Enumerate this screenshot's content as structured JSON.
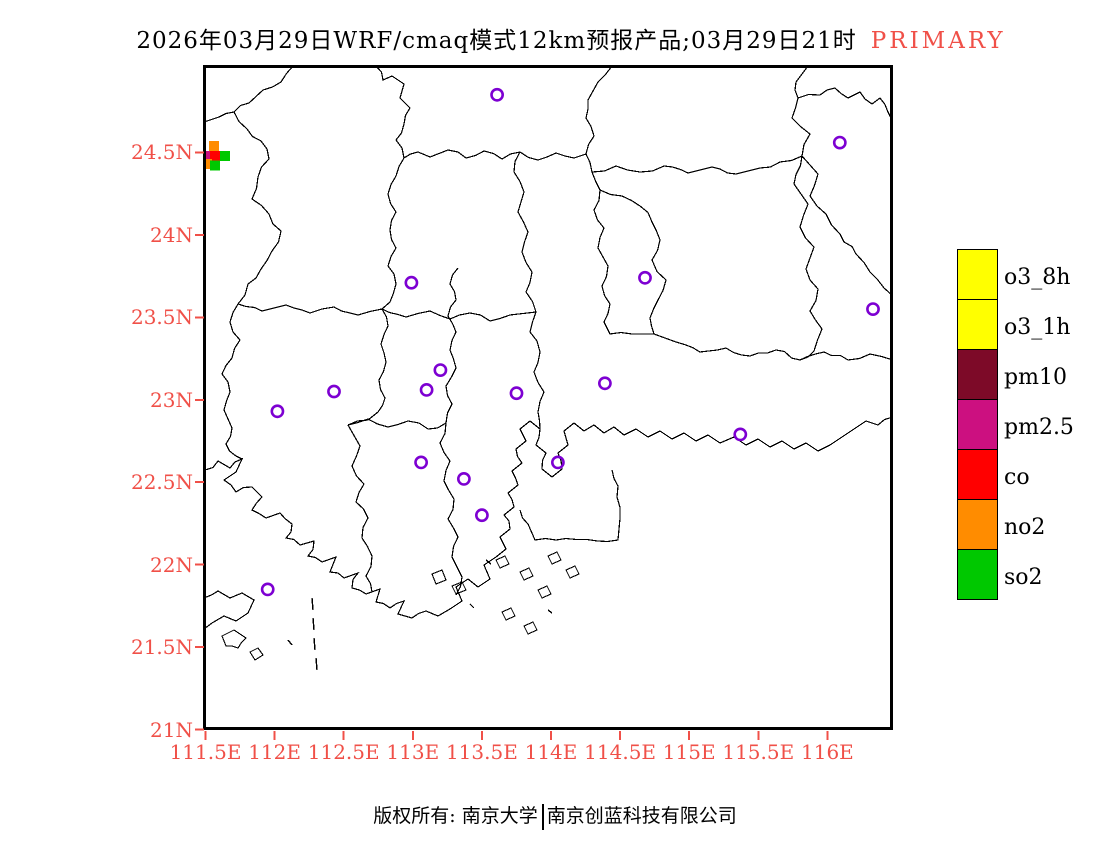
{
  "title": {
    "text": "2026年03月29日WRF/cmaq模式12km预报产品;03月29日21时",
    "highlight": "PRIMARY"
  },
  "colors": {
    "accent_red": "#F05048",
    "marker_purple": "#7D00D2",
    "boundary_black": "#000000"
  },
  "axes": {
    "lat_ticks": [
      {
        "label": "24.5N",
        "value": 24.5
      },
      {
        "label": "24N",
        "value": 24.0
      },
      {
        "label": "23.5N",
        "value": 23.5
      },
      {
        "label": "23N",
        "value": 23.0
      },
      {
        "label": "22.5N",
        "value": 22.5
      },
      {
        "label": "22N",
        "value": 22.0
      },
      {
        "label": "21.5N",
        "value": 21.5
      },
      {
        "label": "21N",
        "value": 21.0
      }
    ],
    "lon_ticks": [
      {
        "label": "111.5E",
        "value": 111.5
      },
      {
        "label": "112E",
        "value": 112.0
      },
      {
        "label": "112.5E",
        "value": 112.5
      },
      {
        "label": "113E",
        "value": 113.0
      },
      {
        "label": "113.5E",
        "value": 113.5
      },
      {
        "label": "114E",
        "value": 114.0
      },
      {
        "label": "114.5E",
        "value": 114.5
      },
      {
        "label": "115E",
        "value": 115.0
      },
      {
        "label": "115.5E",
        "value": 115.5
      },
      {
        "label": "116E",
        "value": 116.0
      }
    ]
  },
  "legend": {
    "entries": [
      {
        "label": "o3_8h",
        "color": "#FFFF00"
      },
      {
        "label": "o3_1h",
        "color": "#FFFF00"
      },
      {
        "label": "pm10",
        "color": "#7D0A28"
      },
      {
        "label": "pm2.5",
        "color": "#CC1080"
      },
      {
        "label": "co",
        "color": "#FF0000"
      },
      {
        "label": "no2",
        "color": "#FF8C00"
      },
      {
        "label": "so2",
        "color": "#00C800"
      }
    ]
  },
  "footer": {
    "prefix": "版权所有: 南京大学",
    "separator": "|",
    "company": "南京创蓝科技有限公司"
  },
  "chart_data": {
    "type": "map",
    "title": "WRF/CMAQ 12km primary-pollutant forecast, Guangdong region",
    "x_axis": {
      "unit": "longitude E",
      "range": [
        111.5,
        116.47
      ],
      "ticks": [
        111.5,
        112,
        112.5,
        113,
        113.5,
        114,
        114.5,
        115,
        115.5,
        116
      ]
    },
    "y_axis": {
      "unit": "latitude N",
      "range": [
        21.0,
        25.03
      ],
      "ticks": [
        21,
        21.5,
        22,
        22.5,
        23,
        23.5,
        24,
        24.5
      ]
    },
    "grid_on": false,
    "legend_position": "right",
    "pollutant_categories": [
      "o3_8h",
      "o3_1h",
      "pm10",
      "pm2.5",
      "co",
      "no2",
      "so2"
    ],
    "city_markers": [
      {
        "lon": 113.61,
        "lat": 24.85
      },
      {
        "lon": 116.09,
        "lat": 24.56
      },
      {
        "lon": 112.99,
        "lat": 23.71
      },
      {
        "lon": 114.68,
        "lat": 23.74
      },
      {
        "lon": 116.33,
        "lat": 23.55
      },
      {
        "lon": 112.02,
        "lat": 22.93
      },
      {
        "lon": 112.43,
        "lat": 23.05
      },
      {
        "lon": 113.1,
        "lat": 23.06
      },
      {
        "lon": 113.2,
        "lat": 23.18
      },
      {
        "lon": 113.75,
        "lat": 23.04
      },
      {
        "lon": 114.39,
        "lat": 23.1
      },
      {
        "lon": 115.37,
        "lat": 22.79
      },
      {
        "lon": 113.06,
        "lat": 22.62
      },
      {
        "lon": 113.37,
        "lat": 22.52
      },
      {
        "lon": 113.5,
        "lat": 22.3
      },
      {
        "lon": 114.05,
        "lat": 22.62
      },
      {
        "lon": 111.95,
        "lat": 21.85
      }
    ],
    "primary_pollutant_cells": [
      {
        "lon": 111.56,
        "lat": 24.54,
        "pollutant": "no2"
      },
      {
        "lon": 111.51,
        "lat": 24.48,
        "pollutant": "pm2.5"
      },
      {
        "lon": 111.57,
        "lat": 24.48,
        "pollutant": "co"
      },
      {
        "lon": 111.64,
        "lat": 24.48,
        "pollutant": "so2"
      },
      {
        "lon": 111.51,
        "lat": 24.43,
        "pollutant": "no2"
      },
      {
        "lon": 111.57,
        "lat": 24.42,
        "pollutant": "so2"
      }
    ]
  }
}
